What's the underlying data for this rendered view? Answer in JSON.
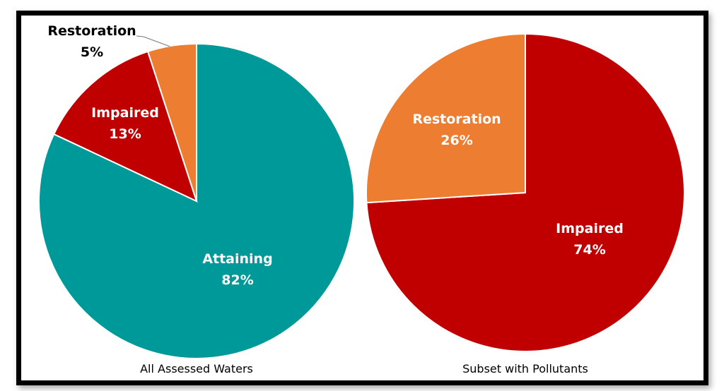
{
  "chart_data": [
    {
      "type": "pie",
      "title": "All Assessed Waters",
      "start": "top",
      "direction": "clockwise",
      "slices": [
        {
          "label": "Attaining",
          "value": 82,
          "pct_label": "82%",
          "color": "#009999"
        },
        {
          "label": "Impaired",
          "value": 13,
          "pct_label": "13%",
          "color": "#C00000"
        },
        {
          "label": "Restoration",
          "value": 5,
          "pct_label": "5%",
          "color": "#ED7D31"
        }
      ]
    },
    {
      "type": "pie",
      "title": "Subset with Pollutants",
      "start": "top",
      "direction": "clockwise",
      "slices": [
        {
          "label": "Impaired",
          "value": 74,
          "pct_label": "74%",
          "color": "#C00000"
        },
        {
          "label": "Restoration",
          "value": 26,
          "pct_label": "26%",
          "color": "#ED7D31"
        }
      ]
    }
  ]
}
